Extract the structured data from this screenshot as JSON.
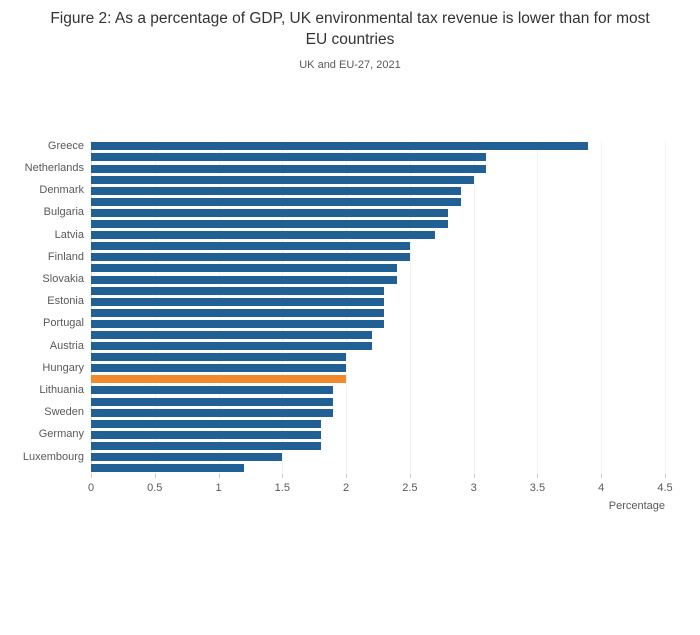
{
  "chart_data": {
    "type": "bar",
    "orientation": "horizontal",
    "title": "Figure 2: As a percentage of GDP, UK environmental tax revenue is lower than for most EU countries",
    "subtitle": "UK and EU-27, 2021",
    "xlabel": "Percentage",
    "xlim": [
      0,
      4.5
    ],
    "xticks": [
      "0",
      "0.5",
      "1",
      "1.5",
      "2",
      "2.5",
      "3",
      "3.5",
      "4",
      "4.5"
    ],
    "grid": "off",
    "legend": "none",
    "bar_color": "#206095",
    "highlight_color": "#f1892d",
    "bars": [
      {
        "label": "Greece",
        "value": 3.9,
        "highlight": false
      },
      {
        "label": "",
        "value": 3.1,
        "highlight": false
      },
      {
        "label": "Netherlands",
        "value": 3.1,
        "highlight": false
      },
      {
        "label": "",
        "value": 3.0,
        "highlight": false
      },
      {
        "label": "Denmark",
        "value": 2.9,
        "highlight": false
      },
      {
        "label": "",
        "value": 2.9,
        "highlight": false
      },
      {
        "label": "Bulgaria",
        "value": 2.8,
        "highlight": false
      },
      {
        "label": "",
        "value": 2.8,
        "highlight": false
      },
      {
        "label": "Latvia",
        "value": 2.7,
        "highlight": false
      },
      {
        "label": "",
        "value": 2.5,
        "highlight": false
      },
      {
        "label": "Finland",
        "value": 2.5,
        "highlight": false
      },
      {
        "label": "",
        "value": 2.4,
        "highlight": false
      },
      {
        "label": "Slovakia",
        "value": 2.4,
        "highlight": false
      },
      {
        "label": "",
        "value": 2.3,
        "highlight": false
      },
      {
        "label": "Estonia",
        "value": 2.3,
        "highlight": false
      },
      {
        "label": "",
        "value": 2.3,
        "highlight": false
      },
      {
        "label": "Portugal",
        "value": 2.3,
        "highlight": false
      },
      {
        "label": "",
        "value": 2.2,
        "highlight": false
      },
      {
        "label": "Austria",
        "value": 2.2,
        "highlight": false
      },
      {
        "label": "",
        "value": 2.0,
        "highlight": false
      },
      {
        "label": "Hungary",
        "value": 2.0,
        "highlight": false
      },
      {
        "label": "",
        "value": 2.0,
        "highlight": true
      },
      {
        "label": "Lithuania",
        "value": 1.9,
        "highlight": false
      },
      {
        "label": "",
        "value": 1.9,
        "highlight": false
      },
      {
        "label": "Sweden",
        "value": 1.9,
        "highlight": false
      },
      {
        "label": "",
        "value": 1.8,
        "highlight": false
      },
      {
        "label": "Germany",
        "value": 1.8,
        "highlight": false
      },
      {
        "label": "",
        "value": 1.8,
        "highlight": false
      },
      {
        "label": "Luxembourg",
        "value": 1.5,
        "highlight": false
      },
      {
        "label": "",
        "value": 1.2,
        "highlight": false
      }
    ]
  }
}
